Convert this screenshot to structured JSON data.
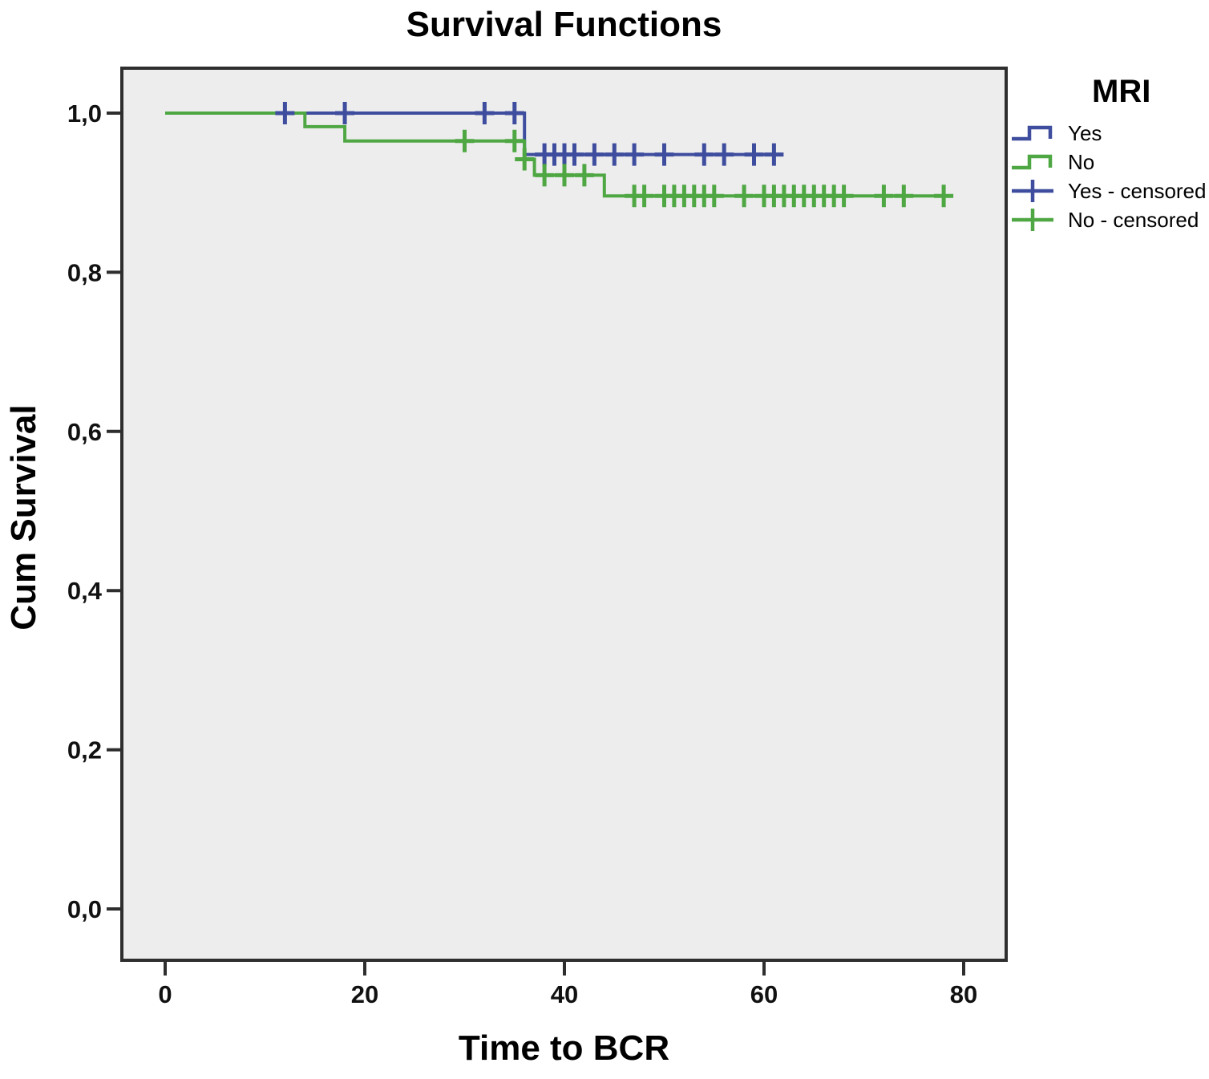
{
  "title": "Survival Functions",
  "x_axis": {
    "label": "Time to BCR",
    "ticks": [
      {
        "value": 0,
        "label": "0"
      },
      {
        "value": 20,
        "label": "20"
      },
      {
        "value": 40,
        "label": "40"
      },
      {
        "value": 60,
        "label": "60"
      },
      {
        "value": 80,
        "label": "80"
      }
    ]
  },
  "y_axis": {
    "label": "Cum Survival",
    "ticks": [
      {
        "value": 0.0,
        "label": "0,0"
      },
      {
        "value": 0.2,
        "label": "0,2"
      },
      {
        "value": 0.4,
        "label": "0,4"
      },
      {
        "value": 0.6,
        "label": "0,6"
      },
      {
        "value": 0.8,
        "label": "0,8"
      },
      {
        "value": 1.0,
        "label": "1,0"
      }
    ]
  },
  "legend": {
    "title": "MRI",
    "items": [
      {
        "label": "Yes",
        "type": "step",
        "color": "#3f4d9e"
      },
      {
        "label": "No",
        "type": "step",
        "color": "#4fa743"
      },
      {
        "label": "Yes - censored",
        "type": "cross",
        "color": "#3f4d9e"
      },
      {
        "label": "No - censored",
        "type": "cross",
        "color": "#4fa743"
      }
    ]
  },
  "colors": {
    "yes_line": "#3f4d9e",
    "no_line": "#4fa743",
    "plot_background": "#ededed",
    "frame": "#2e2e2e",
    "page_background": "#ffffff",
    "text": "#000000"
  },
  "chart_data": {
    "type": "line",
    "subtype": "kaplan-meier-step",
    "title": "Survival Functions",
    "xlabel": "Time to BCR",
    "ylabel": "Cum Survival",
    "xlim": [
      0,
      80
    ],
    "ylim": [
      0.0,
      1.0
    ],
    "grid": false,
    "legend_position": "right-top",
    "series": [
      {
        "name": "Yes",
        "color": "#3f4d9e",
        "steps": [
          [
            0,
            1.0
          ],
          [
            36,
            1.0
          ],
          [
            36,
            0.948
          ],
          [
            61.5,
            0.948
          ]
        ],
        "censored": [
          [
            12,
            1.0
          ],
          [
            18,
            1.0
          ],
          [
            32,
            1.0
          ],
          [
            35,
            1.0
          ],
          [
            38,
            0.948
          ],
          [
            39,
            0.948
          ],
          [
            40,
            0.948
          ],
          [
            41,
            0.948
          ],
          [
            43,
            0.948
          ],
          [
            45,
            0.948
          ],
          [
            47,
            0.948
          ],
          [
            50,
            0.948
          ],
          [
            54,
            0.948
          ],
          [
            56,
            0.948
          ],
          [
            59,
            0.948
          ],
          [
            61,
            0.948
          ]
        ]
      },
      {
        "name": "No",
        "color": "#4fa743",
        "steps": [
          [
            0,
            1.0
          ],
          [
            14,
            1.0
          ],
          [
            14,
            0.983
          ],
          [
            18,
            0.983
          ],
          [
            18,
            0.965
          ],
          [
            36,
            0.965
          ],
          [
            36,
            0.942
          ],
          [
            37,
            0.942
          ],
          [
            37,
            0.922
          ],
          [
            44,
            0.922
          ],
          [
            44,
            0.896
          ],
          [
            78.8,
            0.896
          ]
        ],
        "censored": [
          [
            30,
            0.965
          ],
          [
            35,
            0.965
          ],
          [
            36,
            0.942
          ],
          [
            38,
            0.922
          ],
          [
            40,
            0.922
          ],
          [
            42,
            0.922
          ],
          [
            47,
            0.896
          ],
          [
            48,
            0.896
          ],
          [
            50,
            0.896
          ],
          [
            51,
            0.896
          ],
          [
            52,
            0.896
          ],
          [
            53,
            0.896
          ],
          [
            54,
            0.896
          ],
          [
            55,
            0.896
          ],
          [
            58,
            0.896
          ],
          [
            60,
            0.896
          ],
          [
            61,
            0.896
          ],
          [
            62,
            0.896
          ],
          [
            63,
            0.896
          ],
          [
            64,
            0.896
          ],
          [
            65,
            0.896
          ],
          [
            66,
            0.896
          ],
          [
            67,
            0.896
          ],
          [
            68,
            0.896
          ],
          [
            72,
            0.896
          ],
          [
            74,
            0.896
          ],
          [
            78,
            0.896
          ]
        ]
      }
    ]
  }
}
